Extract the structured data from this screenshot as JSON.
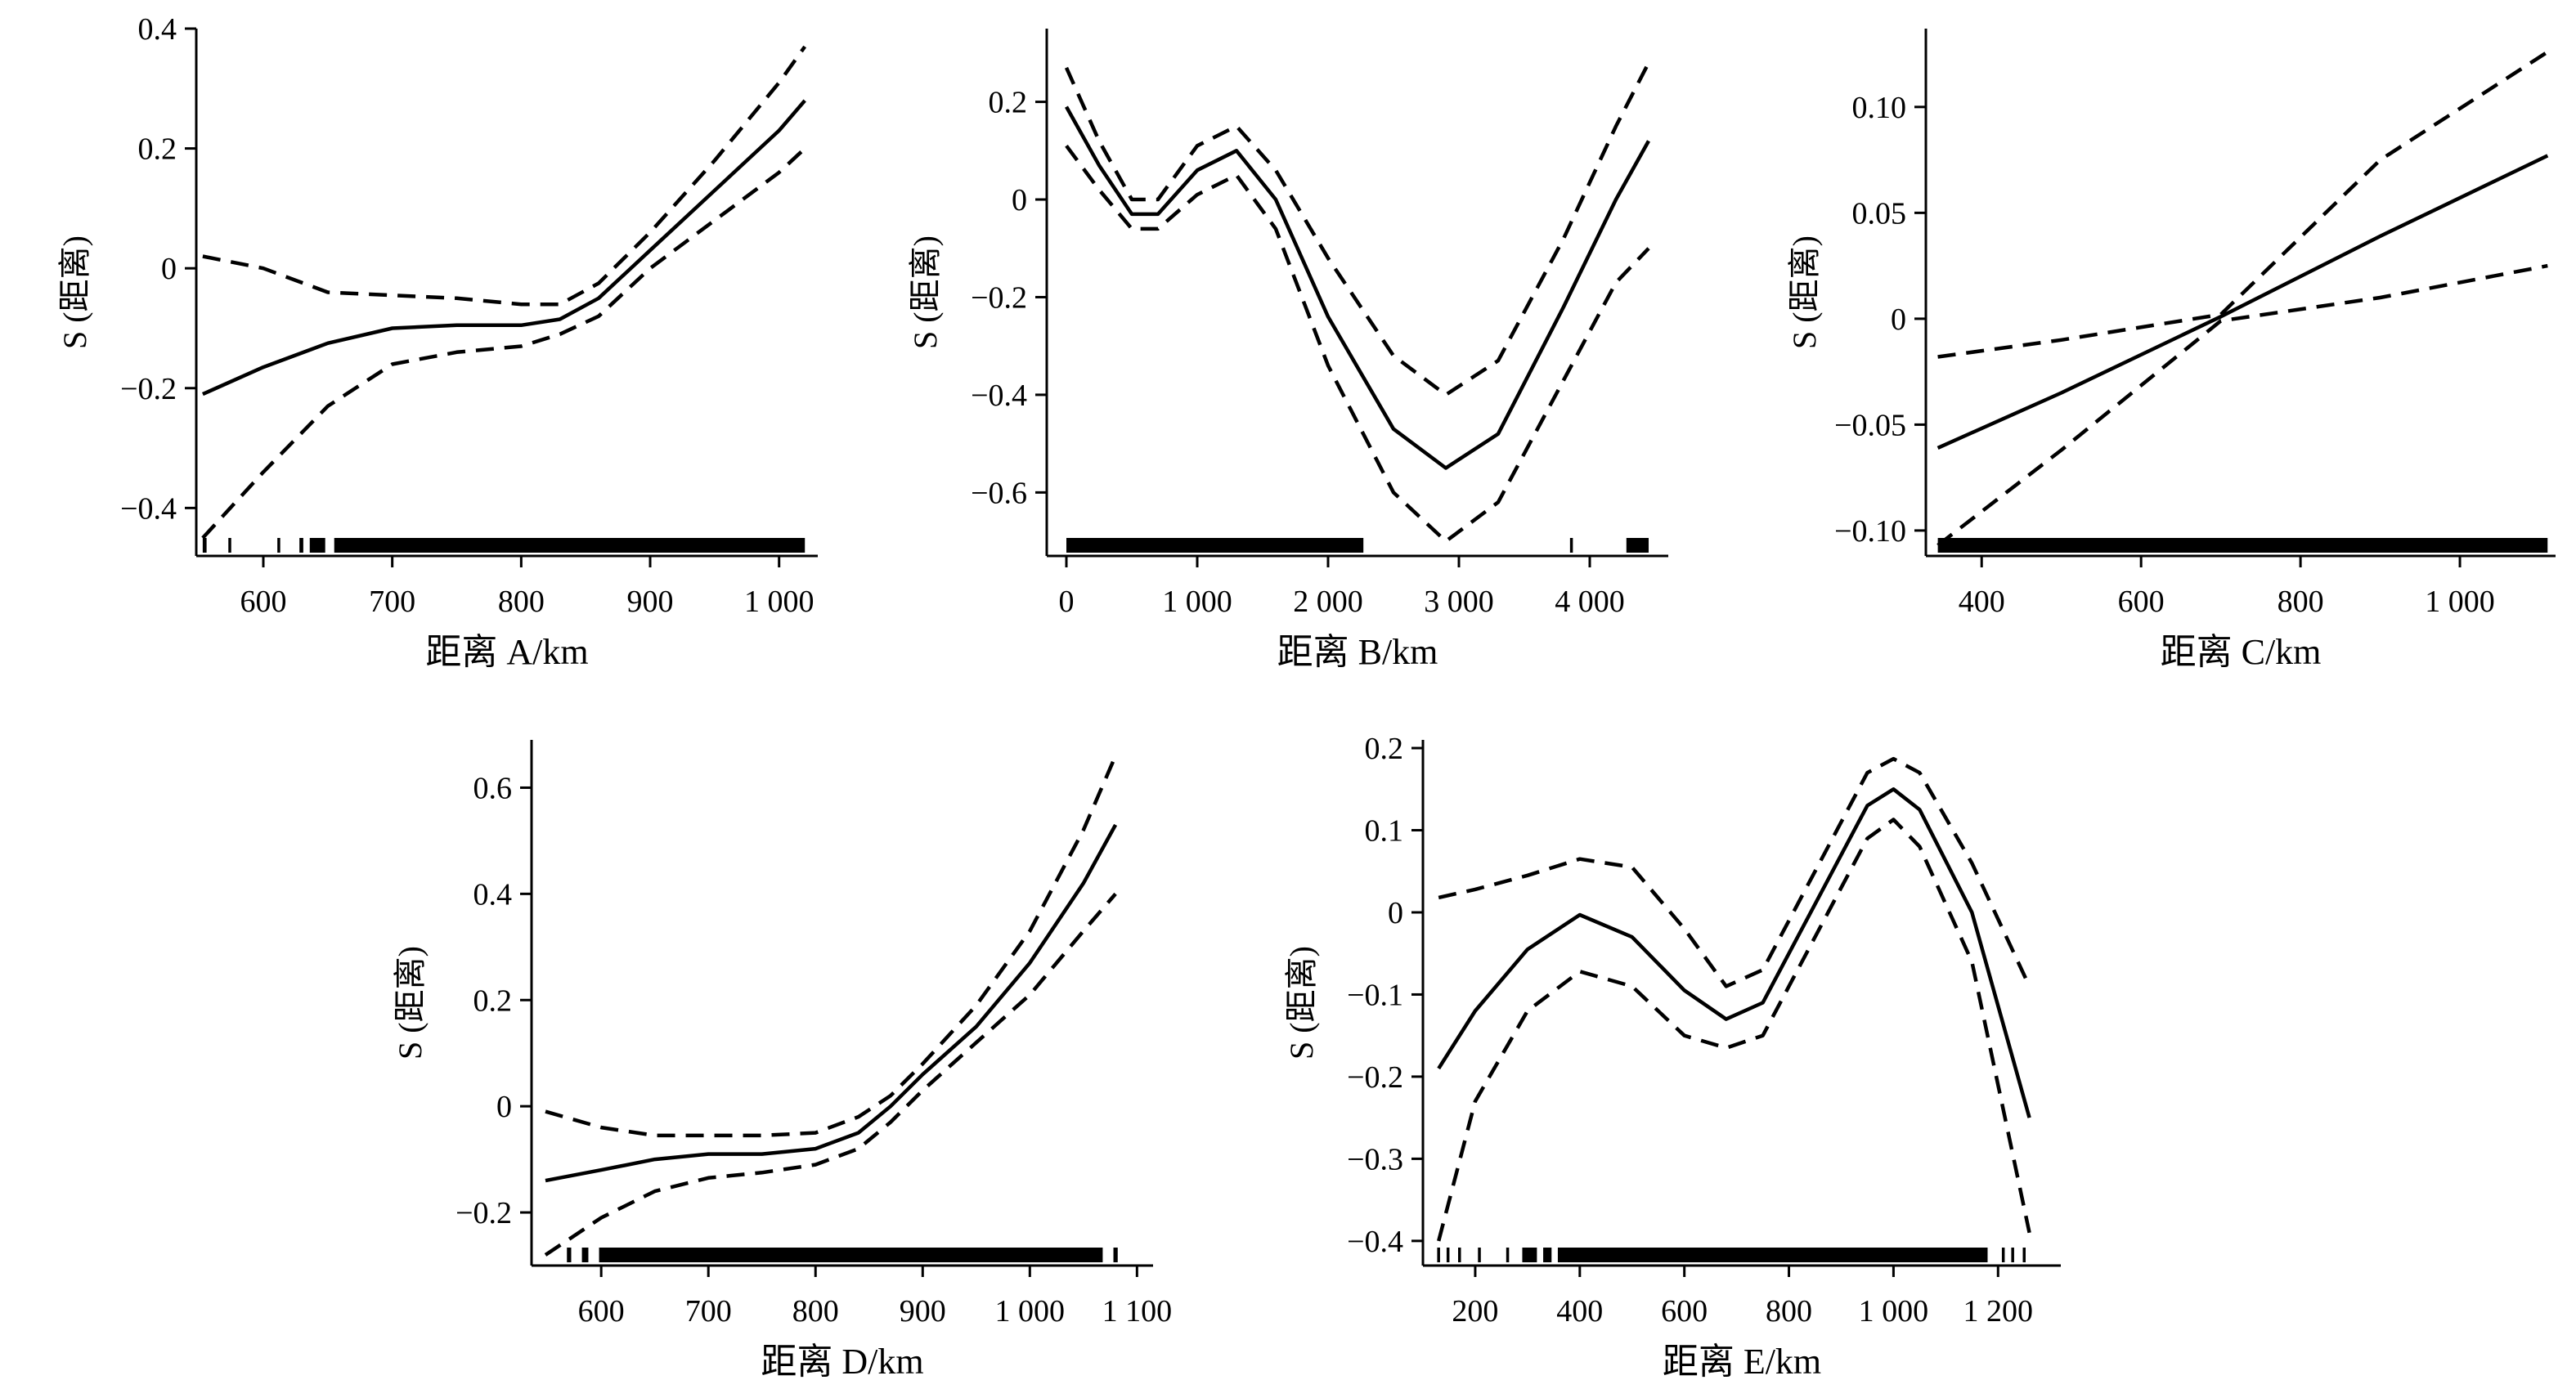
{
  "chart_data": [
    {
      "type": "line",
      "xlabel": "距离 A/km",
      "ylabel": "S (距离)",
      "xlim": [
        548,
        1030
      ],
      "ylim": [
        -0.48,
        0.4
      ],
      "x_ticks": [
        {
          "v": 600,
          "label": "600"
        },
        {
          "v": 700,
          "label": "700"
        },
        {
          "v": 800,
          "label": "800"
        },
        {
          "v": 900,
          "label": "900"
        },
        {
          "v": 1000,
          "label": "1 000"
        }
      ],
      "y_ticks": [
        {
          "v": -0.4,
          "label": "−0.4"
        },
        {
          "v": -0.2,
          "label": "−0.2"
        },
        {
          "v": 0,
          "label": "0"
        },
        {
          "v": 0.2,
          "label": "0.2"
        },
        {
          "v": 0.4,
          "label": "0.4"
        }
      ],
      "x": [
        553,
        600,
        650,
        700,
        750,
        800,
        830,
        860,
        900,
        950,
        1000,
        1020
      ],
      "fit": [
        -0.21,
        -0.165,
        -0.125,
        -0.1,
        -0.095,
        -0.095,
        -0.085,
        -0.05,
        0.03,
        0.13,
        0.23,
        0.28
      ],
      "upper": [
        0.02,
        0.0,
        -0.04,
        -0.045,
        -0.05,
        -0.06,
        -0.06,
        -0.025,
        0.06,
        0.18,
        0.31,
        0.37
      ],
      "lower": [
        -0.45,
        -0.34,
        -0.23,
        -0.16,
        -0.14,
        -0.13,
        -0.11,
        -0.08,
        0.0,
        0.08,
        0.16,
        0.2
      ],
      "rug_ranges": [
        [
          553,
          556
        ],
        [
          574,
          576
        ],
        [
          612,
          614
        ],
        [
          628,
          631
        ],
        [
          636,
          648
        ],
        [
          655,
          1020
        ]
      ]
    },
    {
      "type": "line",
      "xlabel": "距离 B/km",
      "ylabel": "S (距离)",
      "xlim": [
        -150,
        4600
      ],
      "ylim": [
        -0.73,
        0.35
      ],
      "x_ticks": [
        {
          "v": 0,
          "label": "0"
        },
        {
          "v": 1000,
          "label": "1 000"
        },
        {
          "v": 2000,
          "label": "2 000"
        },
        {
          "v": 3000,
          "label": "3 000"
        },
        {
          "v": 4000,
          "label": "4 000"
        }
      ],
      "y_ticks": [
        {
          "v": -0.6,
          "label": "−0.6"
        },
        {
          "v": -0.4,
          "label": "−0.4"
        },
        {
          "v": -0.2,
          "label": "−0.2"
        },
        {
          "v": 0,
          "label": "0"
        },
        {
          "v": 0.2,
          "label": "0.2"
        }
      ],
      "x": [
        0,
        250,
        500,
        700,
        1000,
        1300,
        1600,
        2000,
        2500,
        2900,
        3300,
        3800,
        4200,
        4450
      ],
      "fit": [
        0.19,
        0.07,
        -0.03,
        -0.03,
        0.06,
        0.1,
        0.0,
        -0.24,
        -0.47,
        -0.55,
        -0.48,
        -0.22,
        0.0,
        0.12
      ],
      "upper": [
        0.27,
        0.12,
        0.0,
        0.0,
        0.11,
        0.15,
        0.06,
        -0.12,
        -0.32,
        -0.4,
        -0.33,
        -0.08,
        0.15,
        0.28
      ],
      "lower": [
        0.11,
        0.02,
        -0.06,
        -0.06,
        0.01,
        0.05,
        -0.06,
        -0.34,
        -0.6,
        -0.7,
        -0.62,
        -0.37,
        -0.17,
        -0.1
      ],
      "rug_ranges": [
        [
          0,
          2270
        ],
        [
          3860,
          3880
        ],
        [
          4280,
          4450
        ]
      ]
    },
    {
      "type": "line",
      "xlabel": "距离 C/km",
      "ylabel": "S (距离)",
      "xlim": [
        330,
        1120
      ],
      "ylim": [
        -0.112,
        0.137
      ],
      "x_ticks": [
        {
          "v": 400,
          "label": "400"
        },
        {
          "v": 600,
          "label": "600"
        },
        {
          "v": 800,
          "label": "800"
        },
        {
          "v": 1000,
          "label": "1 000"
        }
      ],
      "y_ticks": [
        {
          "v": -0.1,
          "label": "−0.10"
        },
        {
          "v": -0.05,
          "label": "−0.05"
        },
        {
          "v": 0,
          "label": "0"
        },
        {
          "v": 0.05,
          "label": "0.05"
        },
        {
          "v": 0.1,
          "label": "0.10"
        }
      ],
      "x": [
        345,
        500,
        700,
        900,
        1110
      ],
      "fit": [
        -0.061,
        -0.035,
        0.001,
        0.039,
        0.077
      ],
      "upper": [
        -0.018,
        -0.01,
        0.002,
        0.075,
        0.126
      ],
      "lower": [
        -0.107,
        -0.062,
        -0.001,
        0.01,
        0.025
      ],
      "rug_ranges": [
        [
          345,
          1110
        ]
      ]
    },
    {
      "type": "line",
      "xlabel": "距离 D/km",
      "ylabel": "S (距离)",
      "xlim": [
        535,
        1115
      ],
      "ylim": [
        -0.3,
        0.69
      ],
      "x_ticks": [
        {
          "v": 600,
          "label": "600"
        },
        {
          "v": 700,
          "label": "700"
        },
        {
          "v": 800,
          "label": "800"
        },
        {
          "v": 900,
          "label": "900"
        },
        {
          "v": 1000,
          "label": "1 000"
        },
        {
          "v": 1100,
          "label": "1 100"
        }
      ],
      "y_ticks": [
        {
          "v": -0.2,
          "label": "−0.2"
        },
        {
          "v": 0,
          "label": "0"
        },
        {
          "v": 0.2,
          "label": "0.2"
        },
        {
          "v": 0.4,
          "label": "0.4"
        },
        {
          "v": 0.6,
          "label": "0.6"
        }
      ],
      "x": [
        548,
        600,
        650,
        700,
        750,
        800,
        840,
        870,
        900,
        950,
        1000,
        1050,
        1080
      ],
      "fit": [
        -0.14,
        -0.12,
        -0.1,
        -0.09,
        -0.09,
        -0.08,
        -0.05,
        0.0,
        0.06,
        0.15,
        0.27,
        0.42,
        0.53
      ],
      "upper": [
        -0.01,
        -0.04,
        -0.055,
        -0.055,
        -0.055,
        -0.05,
        -0.02,
        0.02,
        0.08,
        0.19,
        0.33,
        0.52,
        0.66
      ],
      "lower": [
        -0.28,
        -0.21,
        -0.16,
        -0.135,
        -0.125,
        -0.11,
        -0.08,
        -0.03,
        0.03,
        0.12,
        0.21,
        0.33,
        0.4
      ],
      "rug_ranges": [
        [
          568,
          572
        ],
        [
          582,
          588
        ],
        [
          598,
          1068
        ],
        [
          1078,
          1082
        ]
      ]
    },
    {
      "type": "line",
      "xlabel": "距离 E/km",
      "ylabel": "S (距离)",
      "xlim": [
        100,
        1320
      ],
      "ylim": [
        -0.43,
        0.21
      ],
      "x_ticks": [
        {
          "v": 200,
          "label": "200"
        },
        {
          "v": 400,
          "label": "400"
        },
        {
          "v": 600,
          "label": "600"
        },
        {
          "v": 800,
          "label": "800"
        },
        {
          "v": 1000,
          "label": "1 000"
        },
        {
          "v": 1200,
          "label": "1 200"
        }
      ],
      "y_ticks": [
        {
          "v": -0.4,
          "label": "−0.4"
        },
        {
          "v": -0.3,
          "label": "−0.3"
        },
        {
          "v": -0.2,
          "label": "−0.2"
        },
        {
          "v": -0.1,
          "label": "−0.1"
        },
        {
          "v": 0,
          "label": "0"
        },
        {
          "v": 0.1,
          "label": "0.1"
        },
        {
          "v": 0.2,
          "label": "0.2"
        }
      ],
      "x": [
        130,
        200,
        300,
        400,
        500,
        600,
        680,
        750,
        850,
        950,
        1000,
        1050,
        1150,
        1260
      ],
      "fit": [
        -0.19,
        -0.12,
        -0.045,
        -0.003,
        -0.03,
        -0.095,
        -0.13,
        -0.11,
        0.01,
        0.13,
        0.15,
        0.125,
        0.0,
        -0.25
      ],
      "upper": [
        0.018,
        0.028,
        0.045,
        0.065,
        0.055,
        -0.02,
        -0.09,
        -0.07,
        0.05,
        0.17,
        0.187,
        0.17,
        0.06,
        -0.09
      ],
      "lower": [
        -0.4,
        -0.23,
        -0.12,
        -0.072,
        -0.09,
        -0.15,
        -0.165,
        -0.15,
        -0.03,
        0.09,
        0.113,
        0.08,
        -0.06,
        -0.39
      ],
      "rug_ranges": [
        [
          130,
          133
        ],
        [
          148,
          151
        ],
        [
          170,
          173
        ],
        [
          208,
          212
        ],
        [
          262,
          265
        ],
        [
          290,
          318
        ],
        [
          330,
          346
        ],
        [
          358,
          1180
        ],
        [
          1210,
          1214
        ],
        [
          1228,
          1232
        ],
        [
          1250,
          1254
        ]
      ]
    }
  ]
}
